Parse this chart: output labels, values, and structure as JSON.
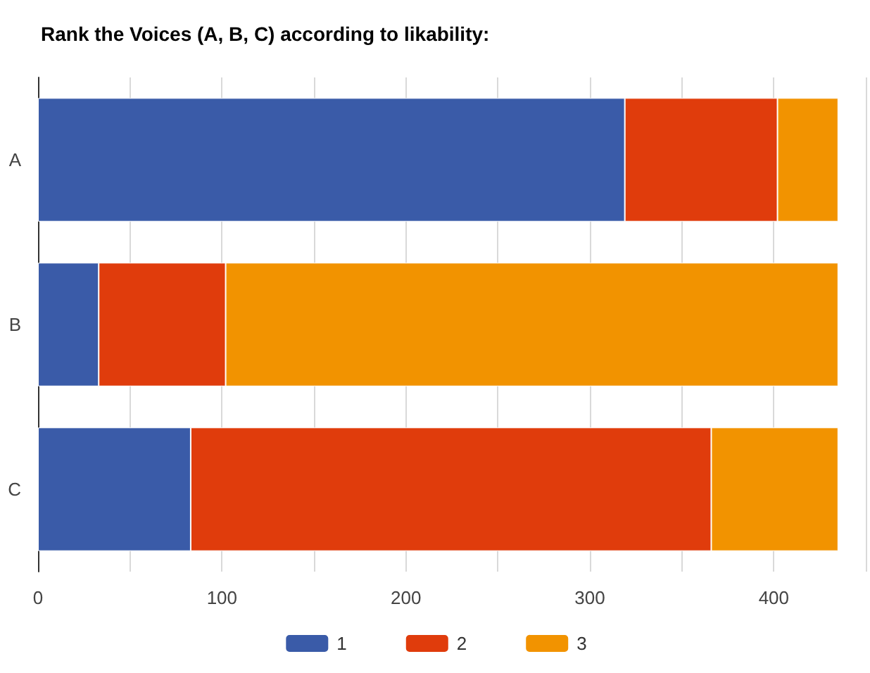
{
  "chart_data": {
    "type": "bar",
    "orientation": "horizontal",
    "stacked": true,
    "title": "Rank the Voices (A, B, C) according to likability:",
    "categories": [
      "A",
      "B",
      "C"
    ],
    "series": [
      {
        "name": "1",
        "color": "#3a5ba8",
        "values": [
          319,
          33,
          83
        ]
      },
      {
        "name": "2",
        "color": "#e03c0c",
        "values": [
          83,
          69,
          283
        ]
      },
      {
        "name": "3",
        "color": "#f29300",
        "values": [
          33,
          333,
          69
        ]
      }
    ],
    "xlim": [
      0,
      450
    ],
    "xticks": [
      0,
      {
        "value": 50,
        "label": null
      },
      100,
      {
        "value": 150,
        "label": null
      },
      200,
      {
        "value": 250,
        "label": null
      },
      300,
      {
        "value": 350,
        "label": null
      },
      400,
      {
        "value": 450,
        "label": null
      }
    ],
    "grid": "x",
    "legend": "bottom"
  }
}
